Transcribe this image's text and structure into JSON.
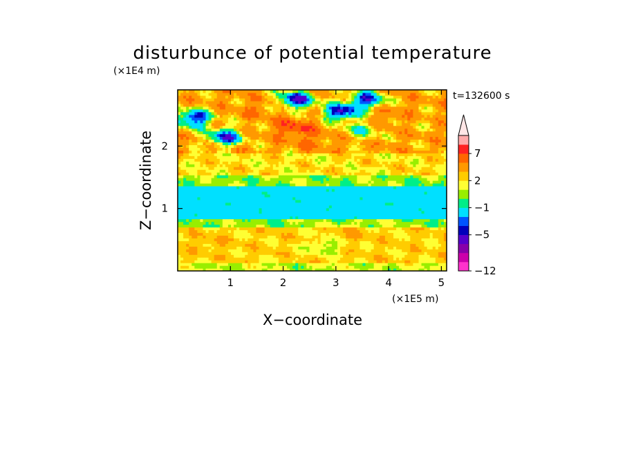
{
  "chart_data": {
    "type": "heatmap",
    "title": "disturbunce of potential temperature",
    "xlabel": "X−coordinate",
    "ylabel": "Z−coordinate",
    "x_unit": "(×1E5 m)",
    "y_unit": "(×1E4 m)",
    "time_label": "t=132600 s",
    "xlim": [
      0,
      5.1
    ],
    "ylim": [
      0,
      2.9
    ],
    "x_ticks": [
      1,
      2,
      3,
      4,
      5
    ],
    "y_ticks": [
      1,
      2
    ],
    "grid": false,
    "colorbar": {
      "levels": [
        -12,
        -11,
        -9,
        -7,
        -5,
        -4,
        -3,
        -1,
        0,
        1,
        2,
        3,
        5,
        7,
        9,
        11
      ],
      "tick_labels": [
        "−12",
        "−5",
        "−1",
        "2",
        "7"
      ],
      "tick_values": [
        -12,
        -5,
        -1,
        2,
        7
      ],
      "colors": [
        "#ff33cc",
        "#cc00aa",
        "#8800aa",
        "#5500cc",
        "#0000bb",
        "#0055ff",
        "#00e0ff",
        "#00ee88",
        "#99ee00",
        "#ffff33",
        "#ffcc00",
        "#ff9900",
        "#ff6600",
        "#ff2222",
        "#ffaaaa"
      ],
      "extend_top_color": "#ffe6e6"
    },
    "bands": [
      {
        "z": [
          0.0,
          0.15
        ],
        "value": 1.0
      },
      {
        "z": [
          0.15,
          0.7
        ],
        "value": 2.3
      },
      {
        "z": [
          0.7,
          0.85
        ],
        "value": 0.5
      },
      {
        "z": [
          0.85,
          1.35
        ],
        "value": -1.5
      },
      {
        "z": [
          1.35,
          1.55
        ],
        "value": 0.5
      },
      {
        "z": [
          1.55,
          1.9
        ],
        "value": 2.0
      },
      {
        "z": [
          1.9,
          2.9
        ],
        "value": 3.5
      }
    ],
    "features": [
      {
        "x": 0.3,
        "z": 2.45,
        "value": -5
      },
      {
        "x": 0.9,
        "z": 2.15,
        "value": -4
      },
      {
        "x": 2.2,
        "z": 2.3,
        "value": 7
      },
      {
        "x": 2.6,
        "z": 2.1,
        "value": 5
      },
      {
        "x": 2.25,
        "z": 2.75,
        "value": -5
      },
      {
        "x": 3.1,
        "z": 2.55,
        "value": -5
      },
      {
        "x": 3.6,
        "z": 2.75,
        "value": -4
      },
      {
        "x": 4.0,
        "z": 2.5,
        "value": 5
      },
      {
        "x": 1.5,
        "z": 2.6,
        "value": 5
      },
      {
        "x": 4.6,
        "z": 2.4,
        "value": 3
      },
      {
        "x": 3.5,
        "z": 2.25,
        "value": 0
      },
      {
        "x": 2.8,
        "z": 0.4,
        "value": 0.5
      },
      {
        "x": 0.6,
        "z": 0.45,
        "value": 3
      },
      {
        "x": 3.3,
        "z": 0.6,
        "value": 3
      }
    ]
  }
}
